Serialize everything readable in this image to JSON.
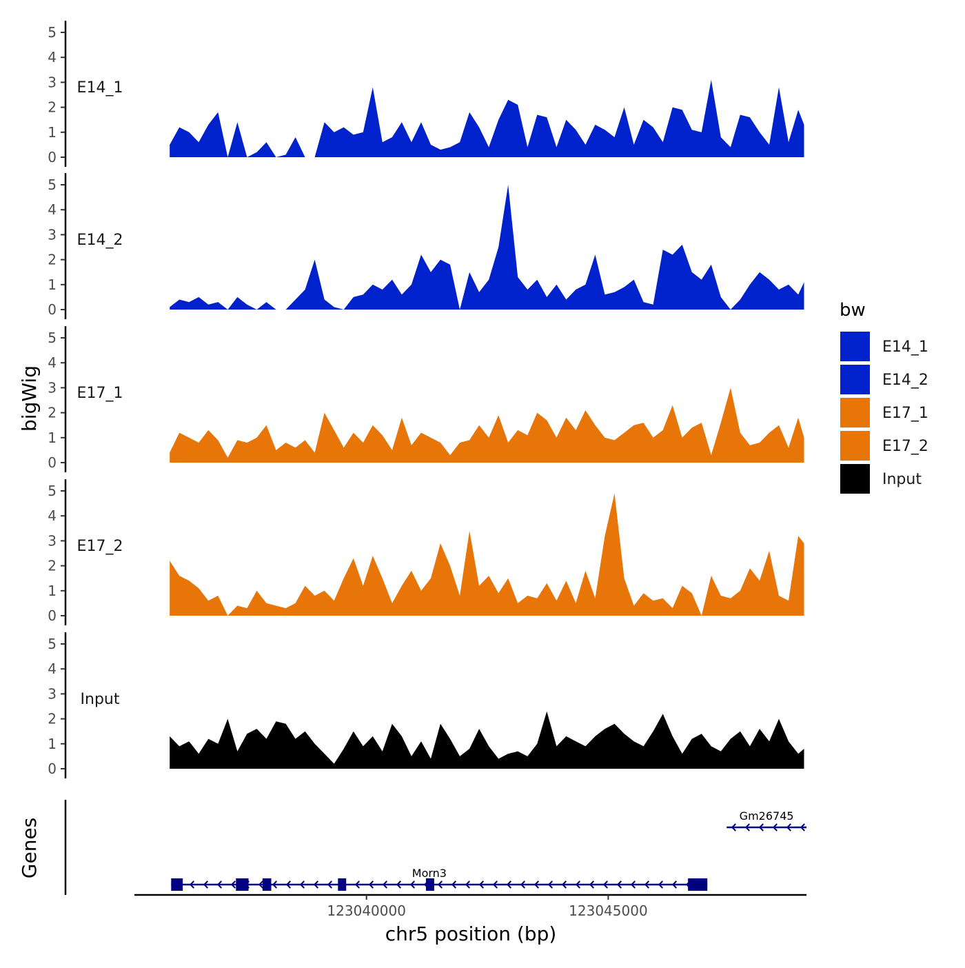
{
  "chart_data": {
    "type": "area",
    "y_axis_title": "bigWig",
    "x_axis_title": "chr5 position (bp)",
    "xlim": [
      123035200,
      123049100
    ],
    "ylim": [
      0,
      5.3
    ],
    "y_ticks": [
      0,
      1,
      2,
      3,
      4,
      5
    ],
    "x_ticks": [
      {
        "value": 123040000,
        "label": "123040000"
      },
      {
        "value": 123045000,
        "label": "123045000"
      }
    ],
    "series": [
      {
        "name": "E14_1",
        "color": "#0022CC",
        "x": [
          123035930,
          123036130,
          123036330,
          123036530,
          123036730,
          123036930,
          123037130,
          123037330,
          123037530,
          123037730,
          123037930,
          123038130,
          123038330,
          123038530,
          123038730,
          123038930,
          123039130,
          123039330,
          123039530,
          123039730,
          123039930,
          123040130,
          123040330,
          123040530,
          123040730,
          123040930,
          123041130,
          123041330,
          123041530,
          123041730,
          123041930,
          123042130,
          123042330,
          123042530,
          123042730,
          123042930,
          123043130,
          123043330,
          123043530,
          123043730,
          123043930,
          123044130,
          123044330,
          123044530,
          123044730,
          123044930,
          123045130,
          123045330,
          123045530,
          123045730,
          123045930,
          123046130,
          123046330,
          123046530,
          123046730,
          123046930,
          123047130,
          123047330,
          123047530,
          123047730,
          123047930,
          123048130,
          123048330,
          123048530,
          123048730,
          123048930,
          123049050
        ],
        "y": [
          0.5,
          1.2,
          1.0,
          0.6,
          1.3,
          1.8,
          0,
          1.4,
          0,
          0.2,
          0.6,
          0,
          0.1,
          0.8,
          0,
          0,
          1.4,
          1.0,
          1.2,
          0.9,
          1.0,
          2.8,
          0.6,
          0.8,
          1.4,
          0.6,
          1.4,
          0.5,
          0.3,
          0.4,
          0.6,
          1.8,
          1.2,
          0.4,
          1.5,
          2.3,
          2.1,
          0.4,
          1.7,
          1.6,
          0.4,
          1.5,
          1.1,
          0.5,
          1.3,
          1.1,
          0.8,
          2.0,
          0.5,
          1.5,
          1.2,
          0.6,
          2.0,
          1.9,
          1.1,
          1.0,
          3.1,
          0.8,
          0.4,
          1.7,
          1.6,
          1.0,
          0.5,
          2.8,
          0.6,
          1.9,
          1.3
        ]
      },
      {
        "name": "E14_2",
        "color": "#0022CC",
        "x": [
          123035930,
          123036130,
          123036330,
          123036530,
          123036730,
          123036930,
          123037130,
          123037330,
          123037530,
          123037730,
          123037930,
          123038130,
          123038330,
          123038530,
          123038730,
          123038930,
          123039130,
          123039330,
          123039530,
          123039730,
          123039930,
          123040130,
          123040330,
          123040530,
          123040730,
          123040930,
          123041130,
          123041330,
          123041530,
          123041730,
          123041930,
          123042130,
          123042330,
          123042530,
          123042730,
          123042930,
          123043130,
          123043330,
          123043530,
          123043730,
          123043930,
          123044130,
          123044330,
          123044530,
          123044730,
          123044930,
          123045130,
          123045330,
          123045530,
          123045730,
          123045930,
          123046130,
          123046330,
          123046530,
          123046730,
          123046930,
          123047130,
          123047330,
          123047530,
          123047730,
          123047930,
          123048130,
          123048330,
          123048530,
          123048730,
          123048930,
          123049050
        ],
        "y": [
          0.1,
          0.4,
          0.3,
          0.5,
          0.2,
          0.3,
          0,
          0.5,
          0.2,
          0,
          0.3,
          0,
          0,
          0.4,
          0.8,
          2.0,
          0.4,
          0.1,
          0,
          0.5,
          0.6,
          1.0,
          0.8,
          1.2,
          0.6,
          1.0,
          2.2,
          1.5,
          2.0,
          1.8,
          0,
          1.5,
          0.7,
          1.2,
          2.5,
          5.0,
          1.3,
          0.8,
          1.2,
          0.5,
          1.0,
          0.4,
          0.8,
          1.0,
          2.2,
          0.6,
          0.7,
          0.9,
          1.2,
          0.3,
          0.2,
          2.4,
          2.2,
          2.6,
          1.5,
          1.2,
          1.8,
          0.5,
          0,
          0.4,
          1.0,
          1.5,
          1.2,
          0.8,
          1.0,
          0.6,
          1.1
        ]
      },
      {
        "name": "E17_1",
        "color": "#E87508",
        "x": [
          123035930,
          123036130,
          123036330,
          123036530,
          123036730,
          123036930,
          123037130,
          123037330,
          123037530,
          123037730,
          123037930,
          123038130,
          123038330,
          123038530,
          123038730,
          123038930,
          123039130,
          123039330,
          123039530,
          123039730,
          123039930,
          123040130,
          123040330,
          123040530,
          123040730,
          123040930,
          123041130,
          123041330,
          123041530,
          123041730,
          123041930,
          123042130,
          123042330,
          123042530,
          123042730,
          123042930,
          123043130,
          123043330,
          123043530,
          123043730,
          123043930,
          123044130,
          123044330,
          123044530,
          123044730,
          123044930,
          123045130,
          123045330,
          123045530,
          123045730,
          123045930,
          123046130,
          123046330,
          123046530,
          123046730,
          123046930,
          123047130,
          123047330,
          123047530,
          123047730,
          123047930,
          123048130,
          123048330,
          123048530,
          123048730,
          123048930,
          123049050
        ],
        "y": [
          0.4,
          1.2,
          1.0,
          0.8,
          1.3,
          0.9,
          0.2,
          0.9,
          0.8,
          1.0,
          1.5,
          0.5,
          0.8,
          0.6,
          0.9,
          0.4,
          2.0,
          1.3,
          0.6,
          1.2,
          0.8,
          1.5,
          1.1,
          0.5,
          1.8,
          0.7,
          1.2,
          1.0,
          0.8,
          0.3,
          0.8,
          0.9,
          1.5,
          1.0,
          1.9,
          0.8,
          1.3,
          1.1,
          2.0,
          1.7,
          1.0,
          1.8,
          1.3,
          2.1,
          1.5,
          1.0,
          0.9,
          1.2,
          1.5,
          1.6,
          1.0,
          1.3,
          2.3,
          1.0,
          1.4,
          1.6,
          0.3,
          1.6,
          3.0,
          1.2,
          0.7,
          0.8,
          1.2,
          1.5,
          0.6,
          1.8,
          1.0
        ]
      },
      {
        "name": "E17_2",
        "color": "#E87508",
        "x": [
          123035930,
          123036130,
          123036330,
          123036530,
          123036730,
          123036930,
          123037130,
          123037330,
          123037530,
          123037730,
          123037930,
          123038130,
          123038330,
          123038530,
          123038730,
          123038930,
          123039130,
          123039330,
          123039530,
          123039730,
          123039930,
          123040130,
          123040330,
          123040530,
          123040730,
          123040930,
          123041130,
          123041330,
          123041530,
          123041730,
          123041930,
          123042130,
          123042330,
          123042530,
          123042730,
          123042930,
          123043130,
          123043330,
          123043530,
          123043730,
          123043930,
          123044130,
          123044330,
          123044530,
          123044730,
          123044930,
          123045130,
          123045330,
          123045530,
          123045730,
          123045930,
          123046130,
          123046330,
          123046530,
          123046730,
          123046930,
          123047130,
          123047330,
          123047530,
          123047730,
          123047930,
          123048130,
          123048330,
          123048530,
          123048730,
          123048930,
          123049050
        ],
        "y": [
          2.2,
          1.6,
          1.4,
          1.1,
          0.6,
          0.8,
          0,
          0.4,
          0.3,
          1.0,
          0.5,
          0.4,
          0.3,
          0.5,
          1.2,
          0.8,
          1.0,
          0.6,
          1.5,
          2.3,
          1.2,
          2.4,
          1.5,
          0.5,
          1.2,
          1.8,
          1.0,
          1.5,
          2.9,
          2.0,
          0.8,
          3.4,
          1.2,
          1.6,
          0.9,
          1.5,
          0.5,
          0.8,
          0.7,
          1.3,
          0.6,
          1.4,
          0.5,
          1.8,
          0.7,
          3.2,
          4.9,
          1.5,
          0.4,
          0.9,
          0.6,
          0.7,
          0.3,
          1.2,
          0.9,
          0,
          1.6,
          0.8,
          0.7,
          1.0,
          1.9,
          1.4,
          2.6,
          0.8,
          0.6,
          3.2,
          2.9
        ]
      },
      {
        "name": "Input",
        "color": "#000000",
        "x": [
          123035930,
          123036130,
          123036330,
          123036530,
          123036730,
          123036930,
          123037130,
          123037330,
          123037530,
          123037730,
          123037930,
          123038130,
          123038330,
          123038530,
          123038730,
          123038930,
          123039130,
          123039330,
          123039530,
          123039730,
          123039930,
          123040130,
          123040330,
          123040530,
          123040730,
          123040930,
          123041130,
          123041330,
          123041530,
          123041730,
          123041930,
          123042130,
          123042330,
          123042530,
          123042730,
          123042930,
          123043130,
          123043330,
          123043530,
          123043730,
          123043930,
          123044130,
          123044330,
          123044530,
          123044730,
          123044930,
          123045130,
          123045330,
          123045530,
          123045730,
          123045930,
          123046130,
          123046330,
          123046530,
          123046730,
          123046930,
          123047130,
          123047330,
          123047530,
          123047730,
          123047930,
          123048130,
          123048330,
          123048530,
          123048730,
          123048930,
          123049050
        ],
        "y": [
          1.3,
          0.9,
          1.1,
          0.6,
          1.2,
          1.0,
          2.0,
          0.7,
          1.4,
          1.6,
          1.2,
          1.9,
          1.8,
          1.2,
          1.5,
          1.0,
          0.6,
          0.2,
          0.8,
          1.5,
          0.9,
          1.3,
          0.7,
          1.8,
          1.3,
          0.5,
          1.1,
          0.4,
          1.8,
          1.2,
          0.5,
          0.8,
          1.6,
          0.9,
          0.4,
          0.6,
          0.7,
          0.5,
          1.0,
          2.3,
          0.9,
          1.3,
          1.1,
          0.9,
          1.3,
          1.6,
          1.8,
          1.4,
          1.1,
          0.9,
          1.5,
          2.2,
          1.3,
          0.6,
          1.2,
          1.4,
          0.9,
          0.7,
          1.2,
          1.5,
          0.9,
          1.6,
          1.1,
          2.0,
          1.1,
          0.6,
          0.8
        ]
      }
    ],
    "genes_track_label": "Genes",
    "genes": [
      {
        "name": "Gm26745",
        "strand": "-",
        "start": 123047450,
        "end": 123049100,
        "exons": []
      },
      {
        "name": "Morn3",
        "strand": "-",
        "start": 123035960,
        "end": 123047050,
        "exons": [
          [
            123035960,
            123036200
          ],
          [
            123037300,
            123037560
          ],
          [
            123037850,
            123038030
          ],
          [
            123039410,
            123039580
          ],
          [
            123041230,
            123041400
          ],
          [
            123046650,
            123047050
          ]
        ]
      }
    ],
    "legend": {
      "title": "bw",
      "position": "right",
      "entries": [
        {
          "label": "E14_1",
          "color": "#0022CC"
        },
        {
          "label": "E14_2",
          "color": "#0022CC"
        },
        {
          "label": "E17_1",
          "color": "#E87508"
        },
        {
          "label": "E17_2",
          "color": "#E87508"
        },
        {
          "label": "Input",
          "color": "#000000"
        }
      ]
    },
    "gene_color": "#000080"
  }
}
